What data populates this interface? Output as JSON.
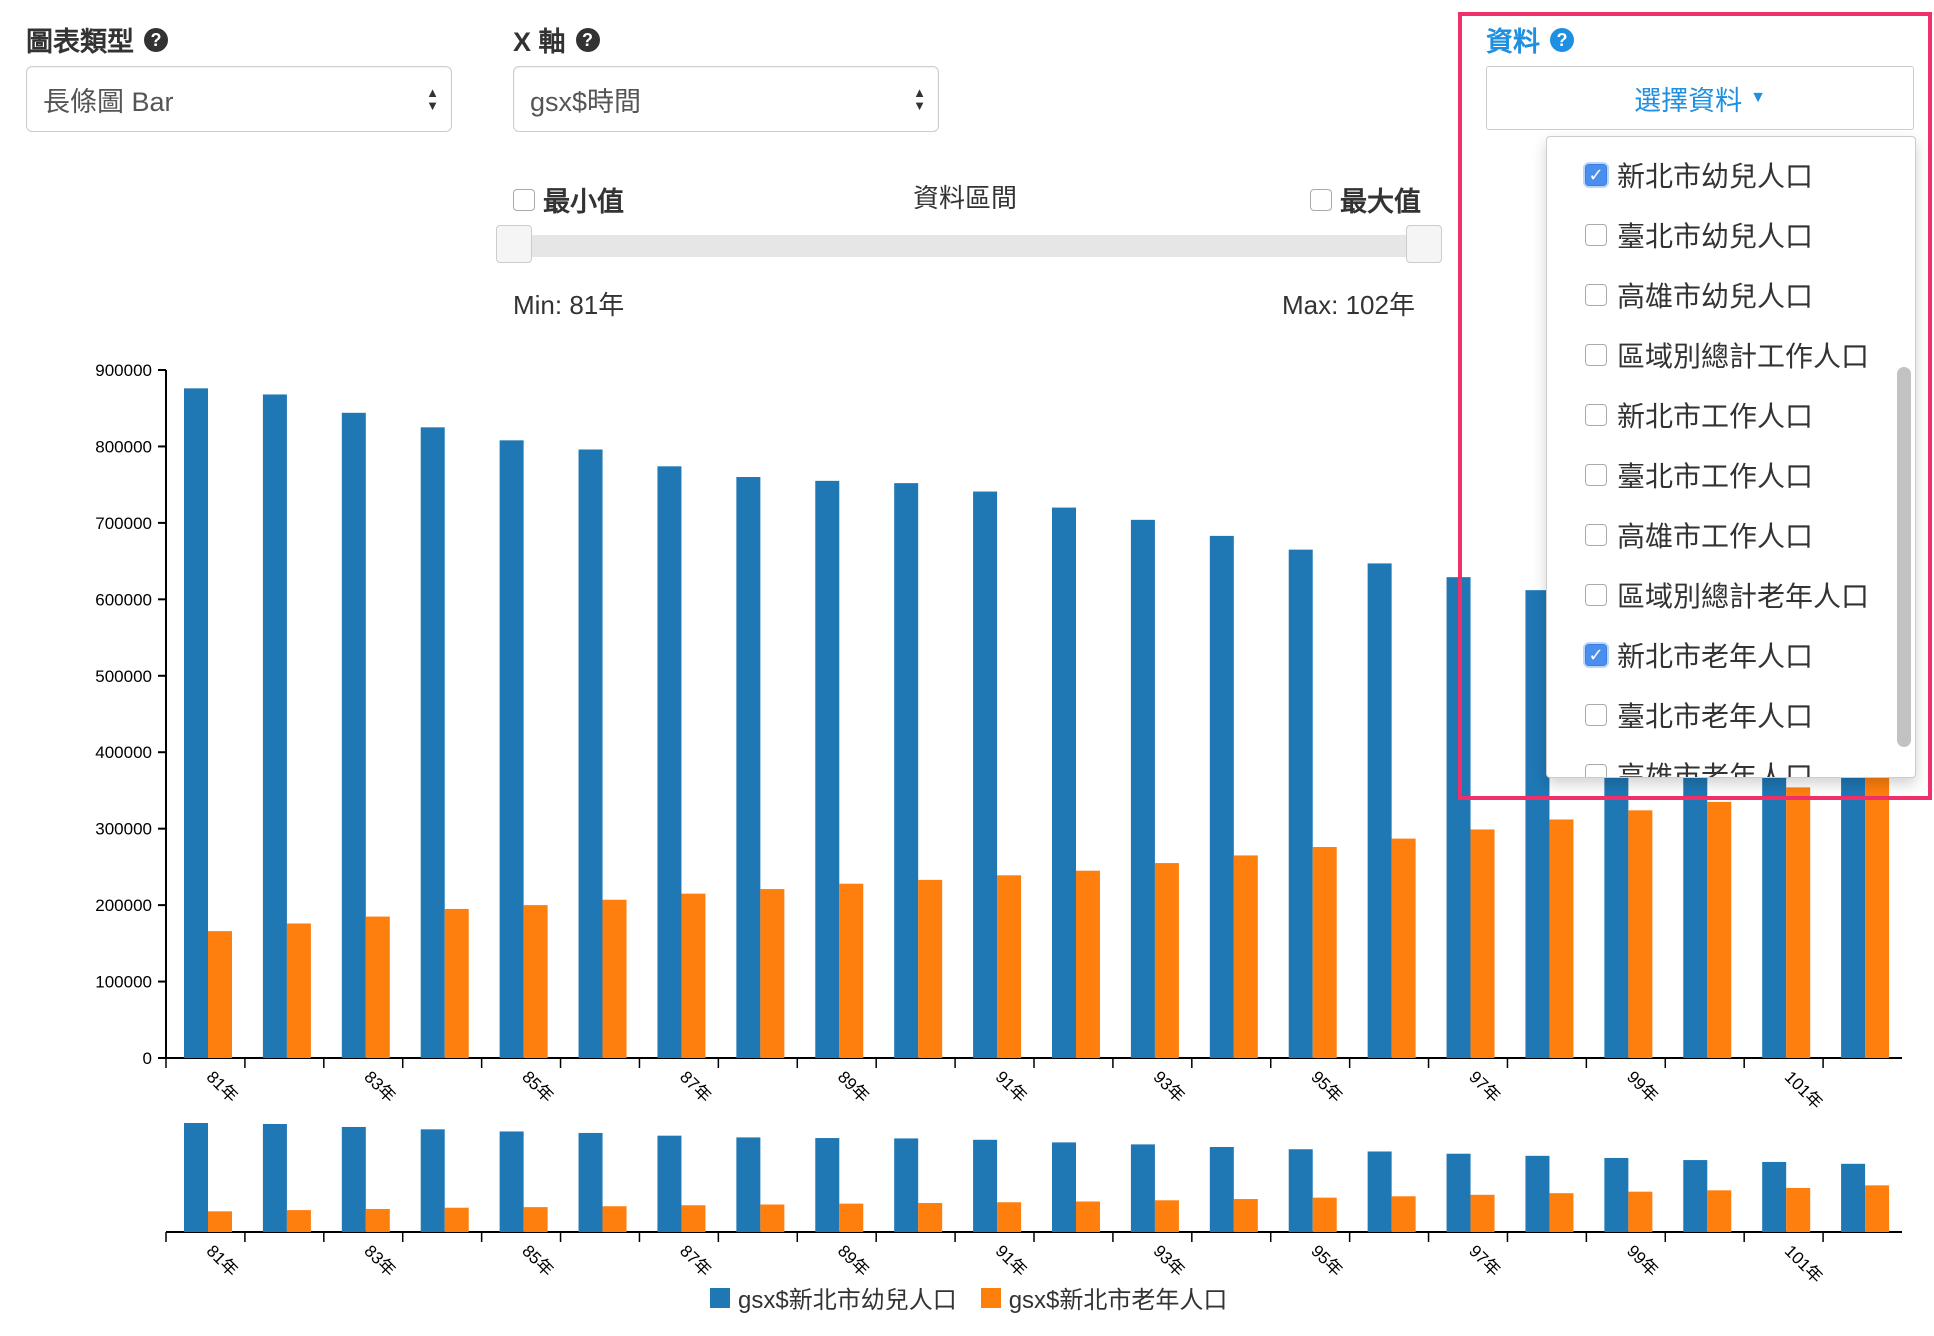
{
  "controls": {
    "chart_type": {
      "label": "圖表類型",
      "value": "長條圖 Bar"
    },
    "x_axis": {
      "label": "X 軸",
      "value": "gsx$時間"
    },
    "range": {
      "min_label": "最小值",
      "title": "資料區間",
      "max_label": "最大值",
      "min_text": "Min: 81年",
      "max_text": "Max: 102年"
    },
    "data": {
      "label": "資料",
      "button": "選擇資料",
      "items": [
        {
          "label": "新北市幼兒人口",
          "checked": true
        },
        {
          "label": "臺北市幼兒人口",
          "checked": false
        },
        {
          "label": "高雄市幼兒人口",
          "checked": false
        },
        {
          "label": "區域別總計工作人口",
          "checked": false
        },
        {
          "label": "新北市工作人口",
          "checked": false
        },
        {
          "label": "臺北市工作人口",
          "checked": false
        },
        {
          "label": "高雄市工作人口",
          "checked": false
        },
        {
          "label": "區域別總計老年人口",
          "checked": false
        },
        {
          "label": "新北市老年人口",
          "checked": true
        },
        {
          "label": "臺北市老年人口",
          "checked": false
        },
        {
          "label": "高雄市老年人口",
          "checked": false
        }
      ]
    }
  },
  "colors": {
    "series1": "#1f77b4",
    "series2": "#ff7f0e",
    "highlight": "#f0306a",
    "link": "#1e8fe1"
  },
  "chart_data": {
    "type": "bar",
    "categories": [
      "81年",
      "82年",
      "83年",
      "84年",
      "85年",
      "86年",
      "87年",
      "88年",
      "89年",
      "90年",
      "91年",
      "92年",
      "93年",
      "94年",
      "95年",
      "96年",
      "97年",
      "98年",
      "99年",
      "100年",
      "101年",
      "102年"
    ],
    "tick_labels": [
      "81年",
      "83年",
      "85年",
      "87年",
      "89年",
      "91年",
      "93年",
      "95年",
      "97年",
      "99年",
      "101年"
    ],
    "ylim": [
      0,
      900000
    ],
    "yticks": [
      "0",
      "100000",
      "200000",
      "300000",
      "400000",
      "500000",
      "600000",
      "700000",
      "800000",
      "900000"
    ],
    "series": [
      {
        "name": "gsx$新北市幼兒人口",
        "values": [
          876000,
          868000,
          844000,
          825000,
          808000,
          796000,
          774000,
          760000,
          755000,
          752000,
          741000,
          720000,
          704000,
          683000,
          665000,
          647000,
          629000,
          612000,
          595000,
          578000,
          563000,
          548000
        ]
      },
      {
        "name": "gsx$新北市老年人口",
        "values": [
          166000,
          176000,
          185000,
          195000,
          200000,
          207000,
          215000,
          221000,
          228000,
          233000,
          239000,
          245000,
          255000,
          265000,
          276000,
          287000,
          299000,
          312000,
          324000,
          335000,
          354000,
          375000
        ]
      }
    ]
  }
}
